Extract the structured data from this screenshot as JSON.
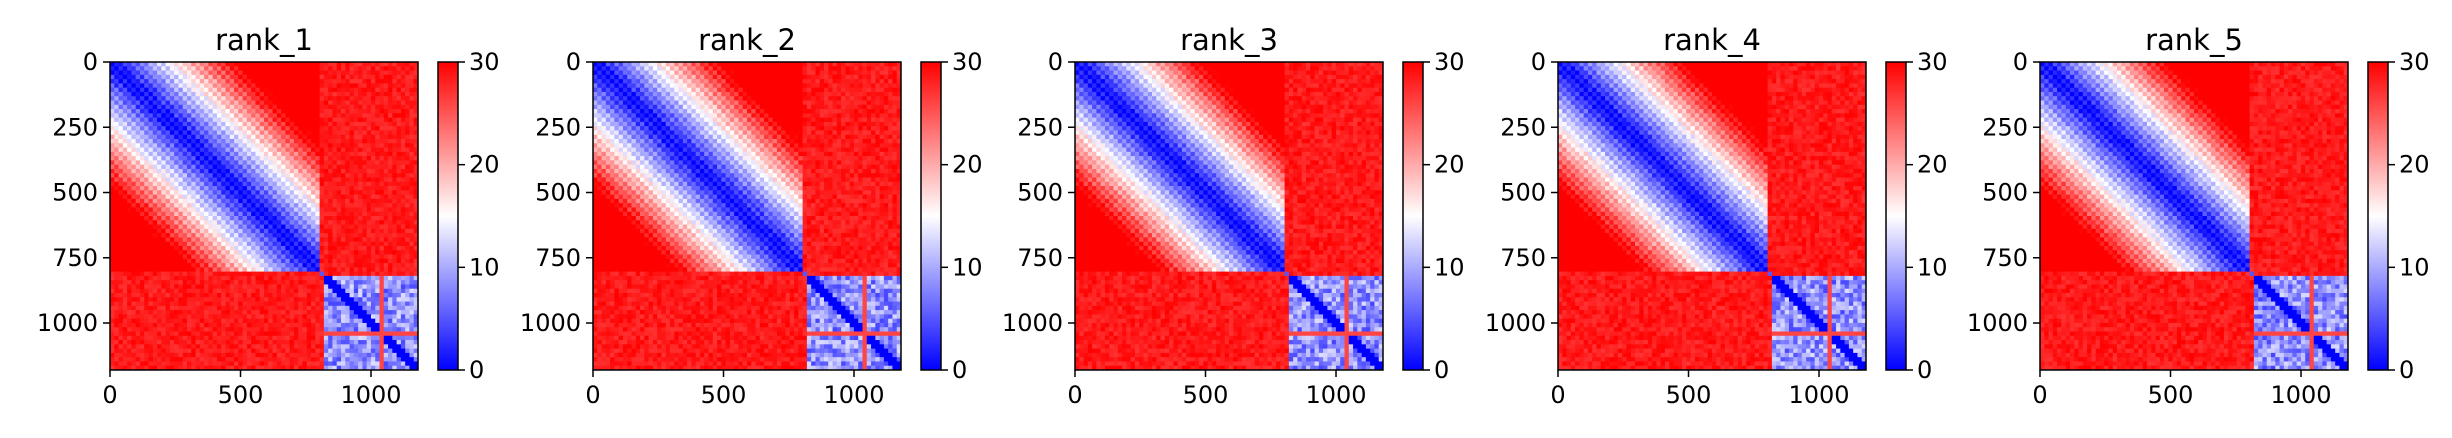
{
  "chart_data": [
    {
      "type": "heatmap",
      "title": "rank_1",
      "xlim": [
        0,
        1180
      ],
      "ylim": [
        1180,
        0
      ],
      "xticks": [
        0,
        500,
        1000
      ],
      "yticks": [
        0,
        250,
        500,
        750,
        1000
      ],
      "colorbar": {
        "min": 0,
        "max": 30,
        "ticks": [
          0,
          10,
          20,
          30
        ],
        "colors": [
          "#0000ff",
          "#ffffff",
          "#ff0000"
        ]
      },
      "block_boundary": 800,
      "blocks": [
        {
          "region": "upper-left",
          "range": [
            0,
            800
          ],
          "low": 0,
          "high": 25,
          "pattern": "distance-banded"
        },
        {
          "region": "off-diagonal",
          "value": 30
        },
        {
          "region": "lower-right",
          "range": [
            820,
            1180
          ],
          "low": 2,
          "high": 14,
          "pattern": "noisy"
        }
      ],
      "stripe_rows": [
        1040
      ]
    },
    {
      "type": "heatmap",
      "title": "rank_2",
      "xlim": [
        0,
        1180
      ],
      "ylim": [
        1180,
        0
      ],
      "xticks": [
        0,
        500,
        1000
      ],
      "yticks": [
        0,
        250,
        500,
        750,
        1000
      ],
      "colorbar": {
        "min": 0,
        "max": 30,
        "ticks": [
          0,
          10,
          20,
          30
        ],
        "colors": [
          "#0000ff",
          "#ffffff",
          "#ff0000"
        ]
      },
      "block_boundary": 800,
      "blocks": [
        {
          "region": "upper-left",
          "range": [
            0,
            800
          ],
          "low": 0,
          "high": 25,
          "pattern": "distance-banded"
        },
        {
          "region": "off-diagonal",
          "value": 30
        },
        {
          "region": "lower-right",
          "range": [
            820,
            1180
          ],
          "low": 2,
          "high": 14,
          "pattern": "noisy"
        }
      ],
      "stripe_rows": [
        1040
      ]
    },
    {
      "type": "heatmap",
      "title": "rank_3",
      "xlim": [
        0,
        1180
      ],
      "ylim": [
        1180,
        0
      ],
      "xticks": [
        0,
        500,
        1000
      ],
      "yticks": [
        0,
        250,
        500,
        750,
        1000
      ],
      "colorbar": {
        "min": 0,
        "max": 30,
        "ticks": [
          0,
          10,
          20,
          30
        ],
        "colors": [
          "#0000ff",
          "#ffffff",
          "#ff0000"
        ]
      },
      "block_boundary": 800,
      "blocks": [
        {
          "region": "upper-left",
          "range": [
            0,
            800
          ],
          "low": 0,
          "high": 25,
          "pattern": "distance-banded"
        },
        {
          "region": "off-diagonal",
          "value": 30
        },
        {
          "region": "lower-right",
          "range": [
            820,
            1180
          ],
          "low": 2,
          "high": 14,
          "pattern": "noisy"
        }
      ],
      "stripe_rows": [
        1040
      ]
    },
    {
      "type": "heatmap",
      "title": "rank_4",
      "xlim": [
        0,
        1180
      ],
      "ylim": [
        1180,
        0
      ],
      "xticks": [
        0,
        500,
        1000
      ],
      "yticks": [
        0,
        250,
        500,
        750,
        1000
      ],
      "colorbar": {
        "min": 0,
        "max": 30,
        "ticks": [
          0,
          10,
          20,
          30
        ],
        "colors": [
          "#0000ff",
          "#ffffff",
          "#ff0000"
        ]
      },
      "block_boundary": 800,
      "blocks": [
        {
          "region": "upper-left",
          "range": [
            0,
            800
          ],
          "low": 0,
          "high": 25,
          "pattern": "distance-banded"
        },
        {
          "region": "off-diagonal",
          "value": 30
        },
        {
          "region": "lower-right",
          "range": [
            820,
            1180
          ],
          "low": 2,
          "high": 14,
          "pattern": "noisy"
        }
      ],
      "stripe_rows": [
        1040
      ]
    },
    {
      "type": "heatmap",
      "title": "rank_5",
      "xlim": [
        0,
        1180
      ],
      "ylim": [
        1180,
        0
      ],
      "xticks": [
        0,
        500,
        1000
      ],
      "yticks": [
        0,
        250,
        500,
        750,
        1000
      ],
      "colorbar": {
        "min": 0,
        "max": 30,
        "ticks": [
          0,
          10,
          20,
          30
        ],
        "colors": [
          "#0000ff",
          "#ffffff",
          "#ff0000"
        ]
      },
      "block_boundary": 800,
      "blocks": [
        {
          "region": "upper-left",
          "range": [
            0,
            800
          ],
          "low": 0,
          "high": 25,
          "pattern": "distance-banded"
        },
        {
          "region": "off-diagonal",
          "value": 30
        },
        {
          "region": "lower-right",
          "range": [
            820,
            1180
          ],
          "low": 2,
          "high": 14,
          "pattern": "noisy"
        }
      ],
      "stripe_rows": [
        1040
      ]
    }
  ]
}
